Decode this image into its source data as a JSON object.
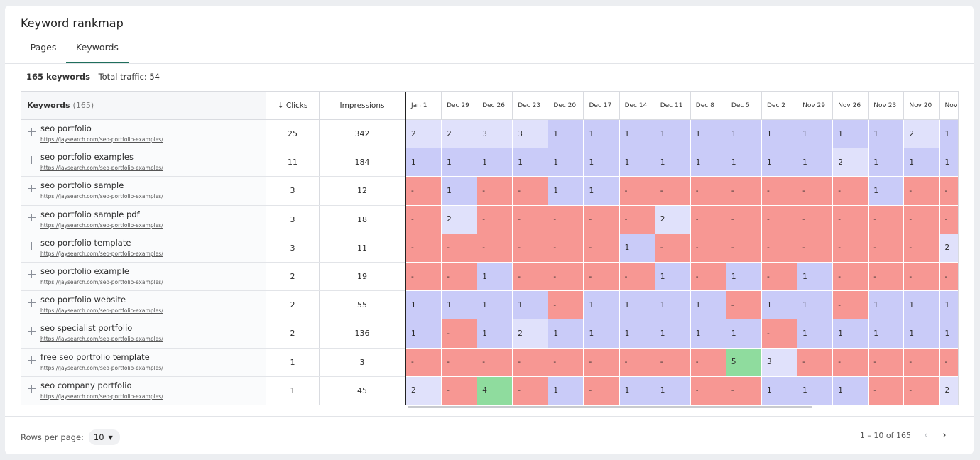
{
  "page": {
    "title": "Keyword rankmap"
  },
  "tabs": [
    {
      "label": "Pages"
    },
    {
      "label": "Keywords"
    }
  ],
  "summary": {
    "keywords_text": "165 keywords",
    "traffic_text": "Total traffic: 54"
  },
  "table": {
    "columns": {
      "keywords": "Keywords",
      "keywords_count": "(165)",
      "clicks": "Clicks",
      "impressions": "Impressions"
    },
    "dates": [
      "Jan 1",
      "Dec 29",
      "Dec 26",
      "Dec 23",
      "Dec 20",
      "Dec 17",
      "Dec 14",
      "Dec 11",
      "Dec 8",
      "Dec 5",
      "Dec 2",
      "Nov 29",
      "Nov 26",
      "Nov 23",
      "Nov 20",
      "Nov"
    ],
    "rows": [
      {
        "keyword": "seo portfolio",
        "url": "https://jaysearch.com/seo-portfolio-examples/",
        "clicks": "25",
        "impressions": "342",
        "ranks": [
          "2",
          "2",
          "3",
          "3",
          "1",
          "1",
          "1",
          "1",
          "1",
          "1",
          "1",
          "1",
          "1",
          "1",
          "2",
          "1"
        ]
      },
      {
        "keyword": "seo portfolio examples",
        "url": "https://jaysearch.com/seo-portfolio-examples/",
        "clicks": "11",
        "impressions": "184",
        "ranks": [
          "1",
          "1",
          "1",
          "1",
          "1",
          "1",
          "1",
          "1",
          "1",
          "1",
          "1",
          "1",
          "2",
          "1",
          "1",
          "1"
        ]
      },
      {
        "keyword": "seo portfolio sample",
        "url": "https://jaysearch.com/seo-portfolio-examples/",
        "clicks": "3",
        "impressions": "12",
        "ranks": [
          "-",
          "1",
          "-",
          "-",
          "1",
          "1",
          "-",
          "-",
          "-",
          "-",
          "-",
          "-",
          "-",
          "1",
          "-",
          "-"
        ]
      },
      {
        "keyword": "seo portfolio sample pdf",
        "url": "https://jaysearch.com/seo-portfolio-examples/",
        "clicks": "3",
        "impressions": "18",
        "ranks": [
          "-",
          "2",
          "-",
          "-",
          "-",
          "-",
          "-",
          "2",
          "-",
          "-",
          "-",
          "-",
          "-",
          "-",
          "-",
          "-"
        ]
      },
      {
        "keyword": "seo portfolio template",
        "url": "https://jaysearch.com/seo-portfolio-examples/",
        "clicks": "3",
        "impressions": "11",
        "ranks": [
          "-",
          "-",
          "-",
          "-",
          "-",
          "-",
          "1",
          "-",
          "-",
          "-",
          "-",
          "-",
          "-",
          "-",
          "-",
          "2"
        ]
      },
      {
        "keyword": "seo portfolio example",
        "url": "https://jaysearch.com/seo-portfolio-examples/",
        "clicks": "2",
        "impressions": "19",
        "ranks": [
          "-",
          "-",
          "1",
          "-",
          "-",
          "-",
          "-",
          "1",
          "-",
          "1",
          "-",
          "1",
          "-",
          "-",
          "-",
          "-"
        ]
      },
      {
        "keyword": "seo portfolio website",
        "url": "https://jaysearch.com/seo-portfolio-examples/",
        "clicks": "2",
        "impressions": "55",
        "ranks": [
          "1",
          "1",
          "1",
          "1",
          "-",
          "1",
          "1",
          "1",
          "1",
          "-",
          "1",
          "1",
          "-",
          "1",
          "1",
          "1"
        ]
      },
      {
        "keyword": "seo specialist portfolio",
        "url": "https://jaysearch.com/seo-portfolio-examples/",
        "clicks": "2",
        "impressions": "136",
        "ranks": [
          "1",
          "-",
          "1",
          "2",
          "1",
          "1",
          "1",
          "1",
          "1",
          "1",
          "-",
          "1",
          "1",
          "1",
          "1",
          "1"
        ]
      },
      {
        "keyword": "free seo portfolio template",
        "url": "https://jaysearch.com/seo-portfolio-examples/",
        "clicks": "1",
        "impressions": "3",
        "ranks": [
          "-",
          "-",
          "-",
          "-",
          "-",
          "-",
          "-",
          "-",
          "-",
          "5",
          "3",
          "-",
          "-",
          "-",
          "-",
          "-"
        ]
      },
      {
        "keyword": "seo company portfolio",
        "url": "https://jaysearch.com/seo-portfolio-examples/",
        "clicks": "1",
        "impressions": "45",
        "ranks": [
          "2",
          "-",
          "4",
          "-",
          "1",
          "-",
          "1",
          "1",
          "-",
          "-",
          "1",
          "1",
          "1",
          "-",
          "-",
          "2"
        ]
      }
    ],
    "cell_colors": {
      "rank_1": "#c9cbf8",
      "rank_2_3": "#e0e1fb",
      "rank_4_5": "#8fdc9e",
      "not_ranked": "#f79793"
    }
  },
  "footer": {
    "rows_per_page_label": "Rows per page:",
    "rows_per_page_value": "10",
    "range_text": "1 – 10 of 165"
  }
}
